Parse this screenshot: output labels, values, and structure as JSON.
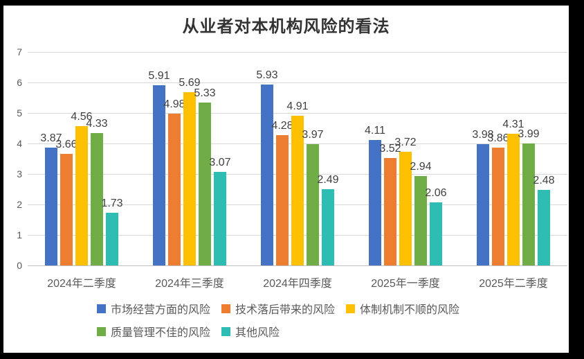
{
  "chart_data": {
    "type": "bar",
    "title": "从业者对本机构风险的看法",
    "categories": [
      "2024年二季度",
      "2024年三季度",
      "2024年四季度",
      "2025年一季度",
      "2025年二季度"
    ],
    "series": [
      {
        "name": "市场经营方面的风险",
        "color": "#4472C4",
        "values": [
          3.87,
          5.91,
          5.93,
          4.11,
          3.98
        ]
      },
      {
        "name": "技术落后带来的风险",
        "color": "#ED7D31",
        "values": [
          3.66,
          4.98,
          4.28,
          3.52,
          3.86
        ]
      },
      {
        "name": "体制机制不顺的风险",
        "color": "#FFC000",
        "values": [
          4.56,
          5.69,
          4.91,
          3.72,
          4.31
        ]
      },
      {
        "name": "质量管理不佳的风险",
        "color": "#70AD47",
        "values": [
          4.33,
          5.33,
          3.97,
          2.94,
          3.99
        ]
      },
      {
        "name": "其他风险",
        "color": "#2DBDB2",
        "values": [
          1.73,
          3.07,
          2.49,
          2.06,
          2.48
        ]
      }
    ],
    "ylim": [
      0,
      7
    ],
    "ytick_step": 1,
    "yticks": [
      0,
      1,
      2,
      3,
      4,
      5,
      6,
      7
    ],
    "grid": true,
    "data_labels": true,
    "legend_position": "bottom",
    "legend_rows": [
      [
        0,
        1,
        2
      ],
      [
        3,
        4
      ]
    ],
    "colors": {
      "gridline": "#d9d9d9",
      "axis_line": "#bfbfbf",
      "tick_text": "#595959",
      "label_text": "#404040",
      "title_text": "#333333",
      "background": "#ffffff",
      "frame": "#000000"
    }
  }
}
